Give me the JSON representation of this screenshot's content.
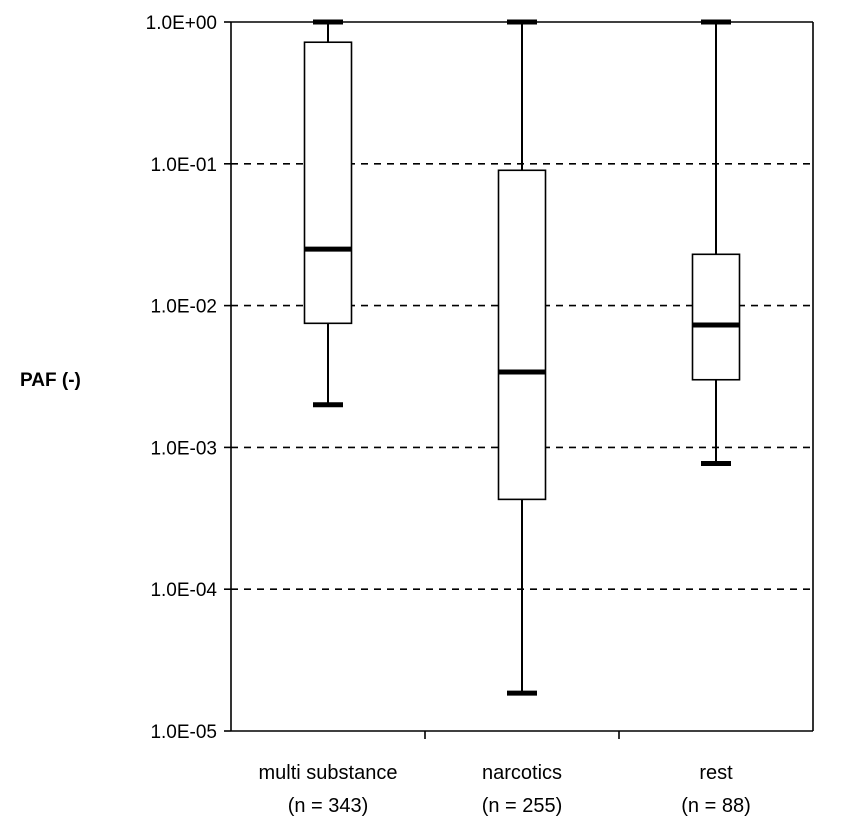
{
  "chart_data": {
    "type": "box",
    "ylabel": "PAF (-)",
    "yscale": "log",
    "ylim": [
      1e-05,
      1
    ],
    "yticks": [
      1,
      0.1,
      0.01,
      0.001,
      0.0001,
      1e-05
    ],
    "ytick_labels": [
      "1.0E+00",
      "1.0E-01",
      "1.0E-02",
      "1.0E-03",
      "1.0E-04",
      "1.0E-05"
    ],
    "grid": "horizontal-dashed",
    "categories": [
      {
        "name": "multi substance",
        "n_label": "(n = 343)"
      },
      {
        "name": "narcotics",
        "n_label": "(n = 255)"
      },
      {
        "name": "rest",
        "n_label": "(n = 88)"
      }
    ],
    "boxes": [
      {
        "min": 0.002,
        "q1": 0.0075,
        "median": 0.025,
        "q3": 0.72,
        "max": 1.0
      },
      {
        "min": 1.85e-05,
        "q1": 0.00043,
        "median": 0.0034,
        "q3": 0.09,
        "max": 1.0
      },
      {
        "min": 0.00077,
        "q1": 0.003,
        "median": 0.0073,
        "q3": 0.023,
        "max": 1.0
      }
    ]
  }
}
